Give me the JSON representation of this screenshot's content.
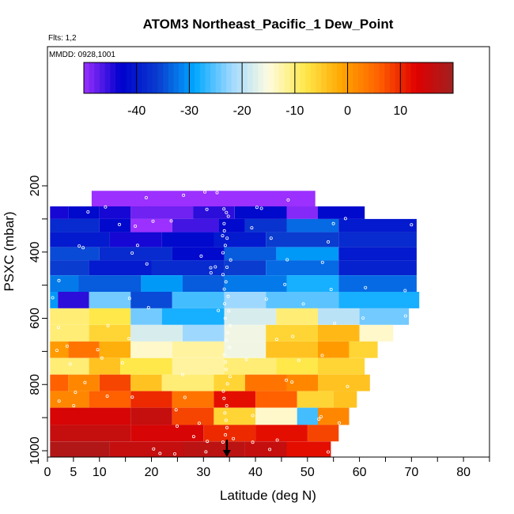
{
  "chart_data": {
    "type": "heatmap",
    "title": "ATOM3 Northeast_Pacific_1 Dew_Point",
    "annotations": [
      "Flts: 1,2",
      "MMDD: 0928,1001"
    ],
    "xlabel": "Latitude (deg N)",
    "ylabel": "PSXC (mbar)",
    "xlim": [
      0,
      85
    ],
    "ylim": [
      1000,
      100
    ],
    "x_ticks": [
      0,
      5,
      10,
      20,
      30,
      40,
      50,
      60,
      70,
      80
    ],
    "y_ticks": [
      200,
      400,
      600,
      800,
      1000
    ],
    "colorbar": {
      "range": [
        -50,
        20
      ],
      "ticks": [
        -40,
        -30,
        -20,
        -10,
        0,
        10
      ],
      "colors": [
        "#9b30ff",
        "#0000cd",
        "#0a3ccf",
        "#00a8ff",
        "#9fd8ff",
        "#fffbe0",
        "#ffe84a",
        "#ffa500",
        "#ff6000",
        "#e00000",
        "#a02020"
      ]
    },
    "marker_latitude": 34.5,
    "pressure_bands": [
      {
        "p_top": 215,
        "p_bot": 262,
        "segments": [
          {
            "x0": 8.5,
            "x1": 51.5,
            "v": -50
          }
        ]
      },
      {
        "p_top": 262,
        "p_bot": 300,
        "segments": [
          {
            "x0": 0.5,
            "x1": 4,
            "v": -44
          },
          {
            "x0": 4,
            "x1": 10,
            "v": -42
          },
          {
            "x0": 10,
            "x1": 16,
            "v": -44
          },
          {
            "x0": 16,
            "x1": 28,
            "v": -48
          },
          {
            "x0": 28,
            "x1": 36,
            "v": -45
          },
          {
            "x0": 36,
            "x1": 46,
            "v": -42
          },
          {
            "x0": 46,
            "x1": 52,
            "v": -49
          },
          {
            "x0": 52,
            "x1": 61,
            "v": -42
          }
        ]
      },
      {
        "p_top": 300,
        "p_bot": 340,
        "segments": [
          {
            "x0": 0.5,
            "x1": 10,
            "v": -38
          },
          {
            "x0": 10,
            "x1": 16,
            "v": -42
          },
          {
            "x0": 16,
            "x1": 24,
            "v": -50
          },
          {
            "x0": 24,
            "x1": 33,
            "v": -46
          },
          {
            "x0": 33,
            "x1": 38,
            "v": -42
          },
          {
            "x0": 38,
            "x1": 46,
            "v": -37
          },
          {
            "x0": 46,
            "x1": 56,
            "v": -33
          },
          {
            "x0": 56,
            "x1": 71,
            "v": -40
          }
        ]
      },
      {
        "p_top": 340,
        "p_bot": 385,
        "segments": [
          {
            "x0": 0.5,
            "x1": 12,
            "v": -40
          },
          {
            "x0": 12,
            "x1": 22,
            "v": -44
          },
          {
            "x0": 22,
            "x1": 32,
            "v": -42
          },
          {
            "x0": 32,
            "x1": 42,
            "v": -40
          },
          {
            "x0": 42,
            "x1": 56,
            "v": -36
          },
          {
            "x0": 56,
            "x1": 71,
            "v": -38
          }
        ]
      },
      {
        "p_top": 385,
        "p_bot": 425,
        "segments": [
          {
            "x0": 0.5,
            "x1": 10,
            "v": -35
          },
          {
            "x0": 10,
            "x1": 24,
            "v": -38
          },
          {
            "x0": 24,
            "x1": 34,
            "v": -42
          },
          {
            "x0": 34,
            "x1": 44,
            "v": -34
          },
          {
            "x0": 44,
            "x1": 56,
            "v": -30
          },
          {
            "x0": 56,
            "x1": 71,
            "v": -40
          }
        ]
      },
      {
        "p_top": 425,
        "p_bot": 470,
        "segments": [
          {
            "x0": 0.5,
            "x1": 8,
            "v": -36
          },
          {
            "x0": 8,
            "x1": 20,
            "v": -40
          },
          {
            "x0": 20,
            "x1": 34,
            "v": -38
          },
          {
            "x0": 34,
            "x1": 42,
            "v": -36
          },
          {
            "x0": 42,
            "x1": 56,
            "v": -33
          },
          {
            "x0": 56,
            "x1": 71,
            "v": -39
          }
        ]
      },
      {
        "p_top": 470,
        "p_bot": 520,
        "segments": [
          {
            "x0": 0.5,
            "x1": 6,
            "v": -32
          },
          {
            "x0": 6,
            "x1": 18,
            "v": -34
          },
          {
            "x0": 18,
            "x1": 26,
            "v": -30
          },
          {
            "x0": 26,
            "x1": 34,
            "v": -34
          },
          {
            "x0": 34,
            "x1": 46,
            "v": -32
          },
          {
            "x0": 46,
            "x1": 56,
            "v": -28
          },
          {
            "x0": 56,
            "x1": 71,
            "v": -33
          }
        ]
      },
      {
        "p_top": 520,
        "p_bot": 570,
        "segments": [
          {
            "x0": 0.5,
            "x1": 2,
            "v": -30
          },
          {
            "x0": 2,
            "x1": 8,
            "v": -45
          },
          {
            "x0": 8,
            "x1": 16,
            "v": -24
          },
          {
            "x0": 16,
            "x1": 24,
            "v": -35
          },
          {
            "x0": 24,
            "x1": 34,
            "v": -26
          },
          {
            "x0": 34,
            "x1": 42,
            "v": -22
          },
          {
            "x0": 42,
            "x1": 56,
            "v": -25
          },
          {
            "x0": 56,
            "x1": 71.5,
            "v": -28
          }
        ]
      },
      {
        "p_top": 570,
        "p_bot": 620,
        "segments": [
          {
            "x0": 0.5,
            "x1": 8,
            "v": -10
          },
          {
            "x0": 8,
            "x1": 16,
            "v": -8
          },
          {
            "x0": 16,
            "x1": 22,
            "v": -24
          },
          {
            "x0": 22,
            "x1": 34,
            "v": -28
          },
          {
            "x0": 34,
            "x1": 44,
            "v": -18
          },
          {
            "x0": 44,
            "x1": 52,
            "v": -10
          },
          {
            "x0": 52,
            "x1": 60,
            "v": -20
          },
          {
            "x0": 60,
            "x1": 69.5,
            "v": -24
          }
        ]
      },
      {
        "p_top": 620,
        "p_bot": 670,
        "segments": [
          {
            "x0": 0.5,
            "x1": 8,
            "v": -10
          },
          {
            "x0": 8,
            "x1": 16,
            "v": -6
          },
          {
            "x0": 16,
            "x1": 26,
            "v": -18
          },
          {
            "x0": 26,
            "x1": 34,
            "v": -22
          },
          {
            "x0": 34,
            "x1": 42,
            "v": -16
          },
          {
            "x0": 42,
            "x1": 52,
            "v": -6
          },
          {
            "x0": 52,
            "x1": 60,
            "v": -3
          },
          {
            "x0": 60,
            "x1": 66.5,
            "v": -14
          }
        ]
      },
      {
        "p_top": 670,
        "p_bot": 720,
        "segments": [
          {
            "x0": 0.5,
            "x1": 4,
            "v": 0
          },
          {
            "x0": 4,
            "x1": 10,
            "v": 4
          },
          {
            "x0": 10,
            "x1": 16,
            "v": -2
          },
          {
            "x0": 16,
            "x1": 24,
            "v": -14
          },
          {
            "x0": 24,
            "x1": 34,
            "v": -12
          },
          {
            "x0": 34,
            "x1": 42,
            "v": -16
          },
          {
            "x0": 42,
            "x1": 52,
            "v": -4
          },
          {
            "x0": 52,
            "x1": 58,
            "v": 0
          },
          {
            "x0": 58,
            "x1": 63.5,
            "v": -6
          }
        ]
      },
      {
        "p_top": 720,
        "p_bot": 770,
        "segments": [
          {
            "x0": 0.5,
            "x1": 8,
            "v": -10
          },
          {
            "x0": 8,
            "x1": 14,
            "v": -4
          },
          {
            "x0": 14,
            "x1": 24,
            "v": -8
          },
          {
            "x0": 24,
            "x1": 34,
            "v": -12
          },
          {
            "x0": 34,
            "x1": 44,
            "v": -10
          },
          {
            "x0": 44,
            "x1": 52,
            "v": -8
          },
          {
            "x0": 52,
            "x1": 61,
            "v": -6
          }
        ]
      },
      {
        "p_top": 770,
        "p_bot": 820,
        "segments": [
          {
            "x0": 0.5,
            "x1": 4,
            "v": 6
          },
          {
            "x0": 4,
            "x1": 10,
            "v": 2
          },
          {
            "x0": 10,
            "x1": 16,
            "v": 8
          },
          {
            "x0": 16,
            "x1": 22,
            "v": -4
          },
          {
            "x0": 22,
            "x1": 32,
            "v": -10
          },
          {
            "x0": 32,
            "x1": 38,
            "v": -6
          },
          {
            "x0": 38,
            "x1": 46,
            "v": 4
          },
          {
            "x0": 46,
            "x1": 52,
            "v": 2
          },
          {
            "x0": 52,
            "x1": 62,
            "v": -4
          }
        ]
      },
      {
        "p_top": 820,
        "p_bot": 870,
        "segments": [
          {
            "x0": 0.5,
            "x1": 8,
            "v": 2
          },
          {
            "x0": 8,
            "x1": 16,
            "v": 6
          },
          {
            "x0": 16,
            "x1": 24,
            "v": 10
          },
          {
            "x0": 24,
            "x1": 32,
            "v": 4
          },
          {
            "x0": 32,
            "x1": 40,
            "v": 12
          },
          {
            "x0": 40,
            "x1": 48,
            "v": 6
          },
          {
            "x0": 48,
            "x1": 55,
            "v": -6
          },
          {
            "x0": 55,
            "x1": 59.5,
            "v": -4
          }
        ]
      },
      {
        "p_top": 870,
        "p_bot": 922,
        "segments": [
          {
            "x0": 0.5,
            "x1": 16,
            "v": 14
          },
          {
            "x0": 16,
            "x1": 24,
            "v": 16
          },
          {
            "x0": 24,
            "x1": 32,
            "v": 8
          },
          {
            "x0": 32,
            "x1": 40,
            "v": -6
          },
          {
            "x0": 40,
            "x1": 48,
            "v": -14
          },
          {
            "x0": 48,
            "x1": 52,
            "v": -26
          },
          {
            "x0": 52,
            "x1": 58,
            "v": 2
          }
        ]
      },
      {
        "p_top": 922,
        "p_bot": 972,
        "segments": [
          {
            "x0": 0.5,
            "x1": 16,
            "v": 16
          },
          {
            "x0": 16,
            "x1": 30,
            "v": 14
          },
          {
            "x0": 30,
            "x1": 40,
            "v": 10
          },
          {
            "x0": 40,
            "x1": 50,
            "v": 12
          },
          {
            "x0": 50,
            "x1": 56,
            "v": 8
          }
        ]
      },
      {
        "p_top": 972,
        "p_bot": 1020,
        "segments": [
          {
            "x0": 0.5,
            "x1": 12,
            "v": 18
          },
          {
            "x0": 12,
            "x1": 26,
            "v": 16
          },
          {
            "x0": 26,
            "x1": 38,
            "v": 17
          },
          {
            "x0": 38,
            "x1": 46,
            "v": 16
          },
          {
            "x0": 46,
            "x1": 54.5,
            "v": 12
          }
        ]
      }
    ]
  }
}
